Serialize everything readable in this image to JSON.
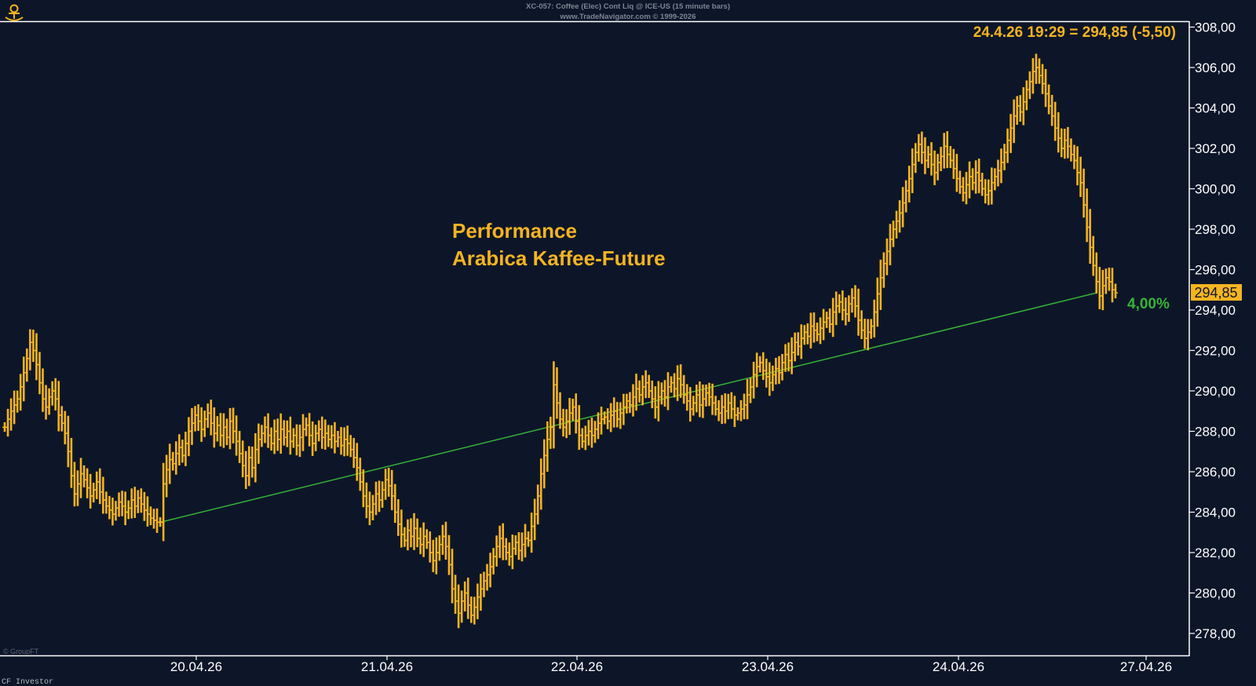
{
  "header": {
    "line1": "XC-057:  Coffee (Elec) Cont Liq @ ICE-US  (15 minute bars)",
    "line2": "www.TradeNavigator.com © 1999-2026"
  },
  "quote_label": "24.4.26 19:29 = 294,85 (-5,50)",
  "chart_title_line1": "Performance",
  "chart_title_line2": "Arabica Kaffee-Future",
  "last_price_label": "294,85",
  "performance_label": "4,00%",
  "footer_left": "CF Investor",
  "watermark": "© GroupFT",
  "colors": {
    "background": "#0d1629",
    "bars": "#f5b421",
    "trend": "#36b336",
    "axis_text": "#ffffff",
    "accent": "#f5b421"
  },
  "chart_data": {
    "type": "ohlc",
    "x_tick_labels": [
      "20.04.26",
      "21.04.26",
      "22.04.26",
      "23.04.26",
      "24.04.26",
      "27.04.26"
    ],
    "y_tick_labels": [
      "278,00",
      "280,00",
      "282,00",
      "284,00",
      "286,00",
      "288,00",
      "290,00",
      "292,00",
      "294,00",
      "296,00",
      "298,00",
      "300,00",
      "302,00",
      "304,00",
      "306,00",
      "308,00"
    ],
    "ylim": [
      277,
      308.3
    ],
    "y_ticks": [
      278,
      280,
      282,
      284,
      286,
      288,
      290,
      292,
      294,
      296,
      298,
      300,
      302,
      304,
      306,
      308
    ],
    "last_close": 294.85,
    "trend": {
      "start": {
        "bar": 49,
        "value": 283.5
      },
      "end": {
        "bar": 344,
        "value": 294.85
      }
    },
    "closes": [
      288.2,
      288.6,
      289.0,
      289.3,
      289.6,
      290.2,
      290.9,
      291.6,
      292.4,
      292.0,
      291.3,
      290.4,
      289.6,
      289.2,
      289.7,
      290.0,
      289.6,
      288.8,
      288.4,
      287.9,
      287.0,
      285.8,
      284.9,
      285.4,
      285.9,
      285.6,
      285.2,
      284.8,
      285.1,
      285.5,
      285.0,
      284.6,
      284.3,
      284.1,
      283.9,
      284.2,
      284.5,
      284.3,
      284.0,
      284.2,
      284.6,
      284.3,
      284.7,
      284.4,
      284.1,
      283.9,
      283.7,
      283.6,
      283.5,
      283.5,
      285.4,
      286.1,
      286.6,
      286.4,
      286.9,
      287.2,
      286.8,
      287.4,
      288.0,
      288.4,
      288.8,
      288.5,
      288.1,
      288.6,
      288.9,
      288.4,
      287.9,
      288.3,
      287.8,
      288.2,
      287.7,
      288.5,
      288.0,
      287.5,
      286.9,
      286.3,
      285.8,
      286.7,
      286.2,
      287.1,
      287.6,
      287.9,
      288.2,
      287.8,
      287.4,
      288.0,
      287.6,
      288.1,
      287.7,
      288.0,
      287.5,
      287.8,
      287.3,
      287.7,
      288.1,
      288.3,
      287.8,
      287.4,
      287.9,
      288.1,
      287.7,
      287.9,
      287.6,
      287.8,
      287.5,
      287.7,
      287.3,
      287.6,
      287.4,
      287.1,
      286.7,
      286.2,
      285.5,
      284.8,
      284.3,
      284.0,
      284.4,
      284.9,
      284.6,
      285.1,
      285.6,
      285.3,
      284.8,
      284.0,
      283.4,
      282.9,
      282.6,
      283.1,
      282.8,
      283.2,
      282.7,
      282.4,
      282.8,
      282.5,
      282.0,
      281.6,
      282.0,
      282.4,
      282.8,
      282.3,
      281.4,
      280.2,
      279.6,
      279.0,
      279.6,
      280.0,
      279.4,
      278.9,
      279.3,
      279.8,
      280.2,
      280.6,
      280.9,
      281.3,
      281.8,
      282.3,
      282.7,
      282.3,
      282.0,
      281.8,
      282.2,
      282.5,
      282.1,
      282.4,
      282.7,
      282.6,
      283.3,
      283.9,
      284.8,
      285.9,
      286.8,
      287.6,
      288.2,
      290.3,
      289.4,
      288.6,
      288.2,
      288.5,
      288.9,
      289.2,
      288.5,
      287.8,
      287.5,
      287.8,
      288.0,
      287.8,
      288.1,
      288.4,
      288.6,
      288.7,
      288.5,
      288.8,
      289.0,
      288.6,
      288.9,
      289.2,
      289.5,
      289.3,
      289.7,
      290.1,
      289.8,
      290.2,
      290.4,
      290.0,
      289.6,
      289.2,
      289.7,
      290.0,
      289.7,
      290.2,
      290.4,
      290.1,
      290.6,
      290.3,
      289.8,
      289.5,
      289.1,
      289.4,
      289.8,
      289.3,
      289.6,
      289.9,
      289.7,
      289.4,
      289.1,
      288.9,
      289.2,
      289.0,
      289.4,
      289.1,
      288.8,
      288.9,
      289.1,
      289.3,
      289.8,
      290.2,
      290.8,
      291.2,
      291.4,
      291.0,
      290.7,
      290.4,
      290.8,
      291.1,
      290.9,
      291.4,
      291.8,
      291.5,
      291.9,
      292.4,
      292.2,
      292.6,
      292.9,
      292.7,
      293.2,
      293.0,
      292.8,
      293.1,
      293.4,
      293.6,
      293.3,
      293.9,
      294.2,
      294.4,
      294.0,
      293.8,
      294.3,
      294.6,
      294.2,
      293.5,
      293.0,
      292.6,
      292.9,
      293.2,
      293.9,
      294.8,
      295.6,
      296.3,
      296.9,
      297.5,
      298.0,
      298.4,
      298.8,
      299.3,
      299.9,
      300.5,
      301.2,
      301.8,
      302.2,
      301.8,
      301.4,
      301.7,
      301.2,
      300.8,
      301.3,
      301.6,
      302.1,
      301.7,
      301.4,
      301.0,
      300.5,
      300.1,
      299.8,
      300.2,
      300.6,
      300.3,
      300.8,
      300.4,
      300.0,
      299.7,
      299.9,
      300.3,
      300.6,
      300.9,
      301.3,
      301.8,
      302.4,
      303.0,
      303.6,
      304.1,
      303.8,
      304.3,
      304.9,
      305.3,
      305.8,
      306.0,
      305.6,
      305.2,
      304.7,
      304.1,
      303.6,
      303.0,
      302.5,
      302.0,
      302.4,
      302.1,
      301.7,
      301.4,
      300.8,
      300.3,
      299.2,
      298.1,
      297.1,
      296.2,
      295.4,
      294.7,
      295.2,
      295.6,
      295.4,
      295.0,
      294.85
    ]
  }
}
